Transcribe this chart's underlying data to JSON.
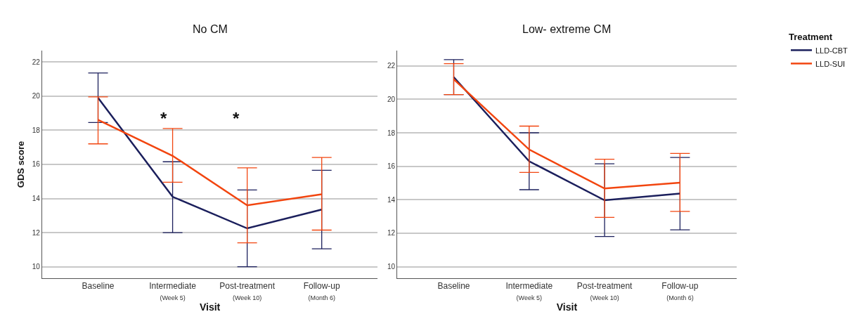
{
  "chart_data": [
    {
      "type": "line",
      "title": "No CM",
      "xlabel": "Visit",
      "ylabel": "GDS score",
      "categories": [
        "Baseline",
        "Intermediate\n(Week 5)",
        "Post-treatment\n(Week 10)",
        "Follow-up\n(Month 6)"
      ],
      "series": [
        {
          "name": "LLD-CBT",
          "color": "#1b1f5c",
          "values": [
            19.9,
            14.1,
            12.25,
            13.35
          ],
          "errors": [
            [
              18.45,
              21.35
            ],
            [
              12.0,
              16.15
            ],
            [
              10.0,
              14.5
            ],
            [
              11.05,
              15.65
            ]
          ]
        },
        {
          "name": "LLD-SUI",
          "color": "#f2450f",
          "values": [
            18.6,
            16.5,
            13.6,
            14.25
          ],
          "errors": [
            [
              17.2,
              19.95
            ],
            [
              14.95,
              18.1
            ],
            [
              11.4,
              15.8
            ],
            [
              12.15,
              16.4
            ]
          ]
        }
      ],
      "annotations": [
        "*",
        "*"
      ],
      "ylim": [
        9.35,
        22.65
      ],
      "yticks": [
        10,
        12,
        14,
        16,
        18,
        20,
        22
      ],
      "grid": "y",
      "legend": "top right",
      "marker": "none",
      "line_style": "solid"
    },
    {
      "type": "line",
      "title": "Low- extreme CM",
      "xlabel": "Visit",
      "legend_title": "Treatment",
      "categories": [
        "Baseline",
        "Intermediate\n(Week 5)",
        "Post-treatment\n(Week 10)",
        "Follow-up\n(Month 6)"
      ],
      "series": [
        {
          "name": "LLD-CBT",
          "color": "#1b1f5c",
          "values": [
            21.33,
            16.3,
            13.97,
            14.37
          ],
          "errors": [
            [
              20.28,
              22.37
            ],
            [
              14.6,
              18.0
            ],
            [
              11.8,
              16.15
            ],
            [
              12.2,
              16.53
            ]
          ]
        },
        {
          "name": "LLD-SUI",
          "color": "#f2450f",
          "values": [
            21.2,
            17.0,
            14.67,
            15.02
          ],
          "errors": [
            [
              20.28,
              22.13
            ],
            [
              15.63,
              18.4
            ],
            [
              12.95,
              16.42
            ],
            [
              13.3,
              16.77
            ]
          ]
        }
      ],
      "ylim": [
        9.33,
        22.9
      ],
      "yticks": [
        10,
        12,
        14,
        16,
        18,
        20,
        22
      ],
      "grid": "y",
      "legend": "top right",
      "marker": "none",
      "line_style": "solid"
    }
  ]
}
